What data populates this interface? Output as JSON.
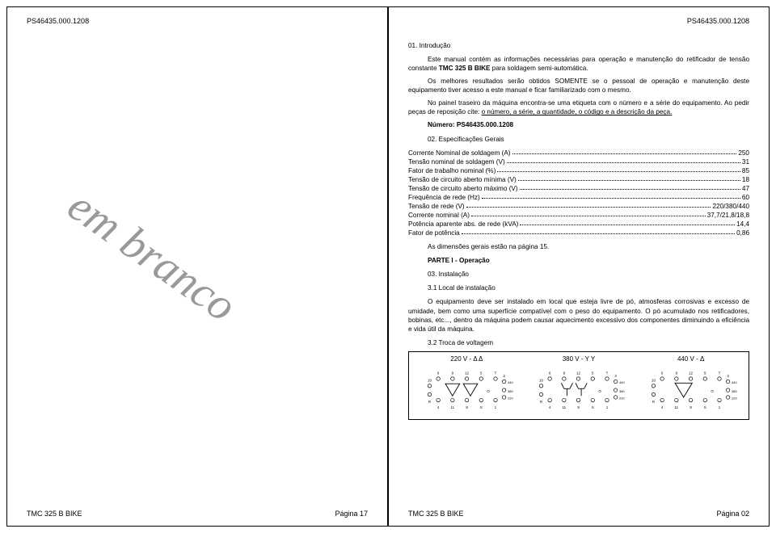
{
  "doc_id": "PS46435.000.1208",
  "equipment_name": "TMC 325 B BIKE",
  "left_page": {
    "watermark": "em branco",
    "footer_page": "Página 17"
  },
  "right_page": {
    "section01_title": "01. Introdução",
    "para1_a": "Este manual contém as informações necessárias para operação e manutenção do retificador de tensão constante ",
    "para1_b": " para soldagem semi-automática.",
    "para2": "Os melhores resultados serão obtidos SOMENTE se o pessoal de operação e manutenção deste equipamento tiver acesso a este manual e ficar familiarizado com o mesmo.",
    "para3_a": "No painel traseiro da máquina encontra-se uma etiqueta com o número e a série do equipamento. Ao pedir peças de reposição cite: ",
    "para3_b": "o número, a série, a quantidade, o código e a descrição da peça.",
    "numero_label": "Número: PS46435.000.1208",
    "section02_title": "02. Especificações Gerais",
    "specs": [
      {
        "label": "Corrente Nominal de soldagem (A)",
        "value": "250"
      },
      {
        "label": "Tensão nominal de soldagem (V)",
        "value": "31"
      },
      {
        "label": "Fator de trabalho nominal (%)",
        "value": "85"
      },
      {
        "label": "Tensão de circuito aberto mínima (V)",
        "value": "18"
      },
      {
        "label": "Tensão de circuito aberto máximo (V)",
        "value": "47"
      },
      {
        "label": "Frequência de rede (Hz)",
        "value": "60"
      },
      {
        "label": "Tensão de rede (V)",
        "value": "220/380/440"
      },
      {
        "label": "Corrente nominal (A)",
        "value": "37,7/21,8/18,8"
      },
      {
        "label": "Potência aparente abs. de rede (kVA)",
        "value": "14,4"
      },
      {
        "label": "Fator de potência",
        "value": "0,86"
      }
    ],
    "dimensions_note": "As dimensões gerais estão na página 15.",
    "part_title": "PARTE I - Operação",
    "section03_title": "03. Instalação",
    "subsection31": "3.1 Local de instalação",
    "para31": "O equipamento deve ser instalado em local que esteja livre de pó, atmosferas corrosivas e excesso de umidade, bem como uma superfície compatível com o peso do equipamento. O pó acumulado nos retificadores, bobinas, etc..., dentro da máquina podem causar aquecimento excessivo dos componentes diminuindo a eficiência e vida útil da máquina.",
    "subsection32": "3.2 Troca de voltagem",
    "diagram_titles": [
      "220 V - Δ Δ",
      "380 V - Y Y",
      "440 V - Δ"
    ],
    "footer_page": "Página 02"
  },
  "colors": {
    "text": "#000000",
    "watermark": "#999999",
    "bg": "#ffffff"
  }
}
